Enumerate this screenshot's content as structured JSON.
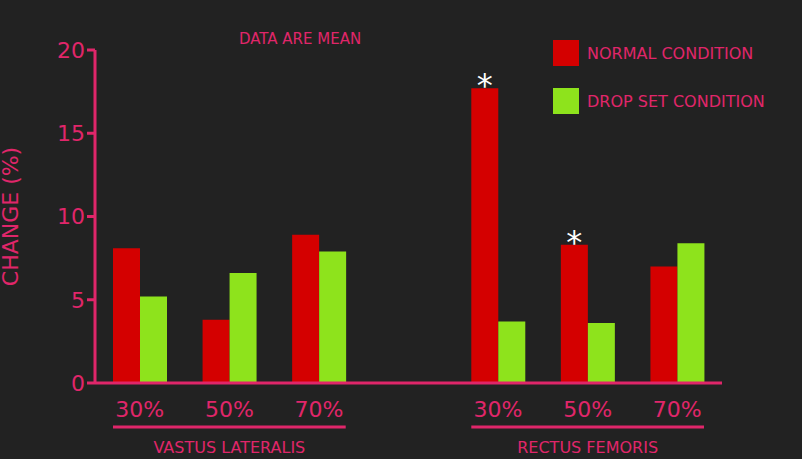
{
  "chart_data": {
    "type": "bar",
    "title": "DATA ARE MEAN",
    "y_label": "CHANGE (%)",
    "categories": [
      "30%",
      "50%",
      "70%",
      null,
      "30%",
      "50%",
      "70%"
    ],
    "groups": [
      "VASTUS LATERALIS",
      "RECTUS FEMORIS"
    ],
    "series": [
      {
        "name": "NORMAL CONDITION",
        "color": "#d40000",
        "values": [
          8.1,
          3.8,
          8.9,
          null,
          17.7,
          8.3,
          7.0
        ],
        "annotations": [
          null,
          null,
          null,
          null,
          "*",
          "*",
          null
        ]
      },
      {
        "name": "DROP SET CONDITION",
        "color": "#8ee31c",
        "values": [
          5.2,
          6.6,
          7.9,
          null,
          3.7,
          3.6,
          8.4
        ]
      }
    ],
    "ylim": [
      0,
      20
    ],
    "yticks": [
      0,
      5,
      10,
      15,
      20
    ],
    "grid": false,
    "legend": "upper right"
  }
}
